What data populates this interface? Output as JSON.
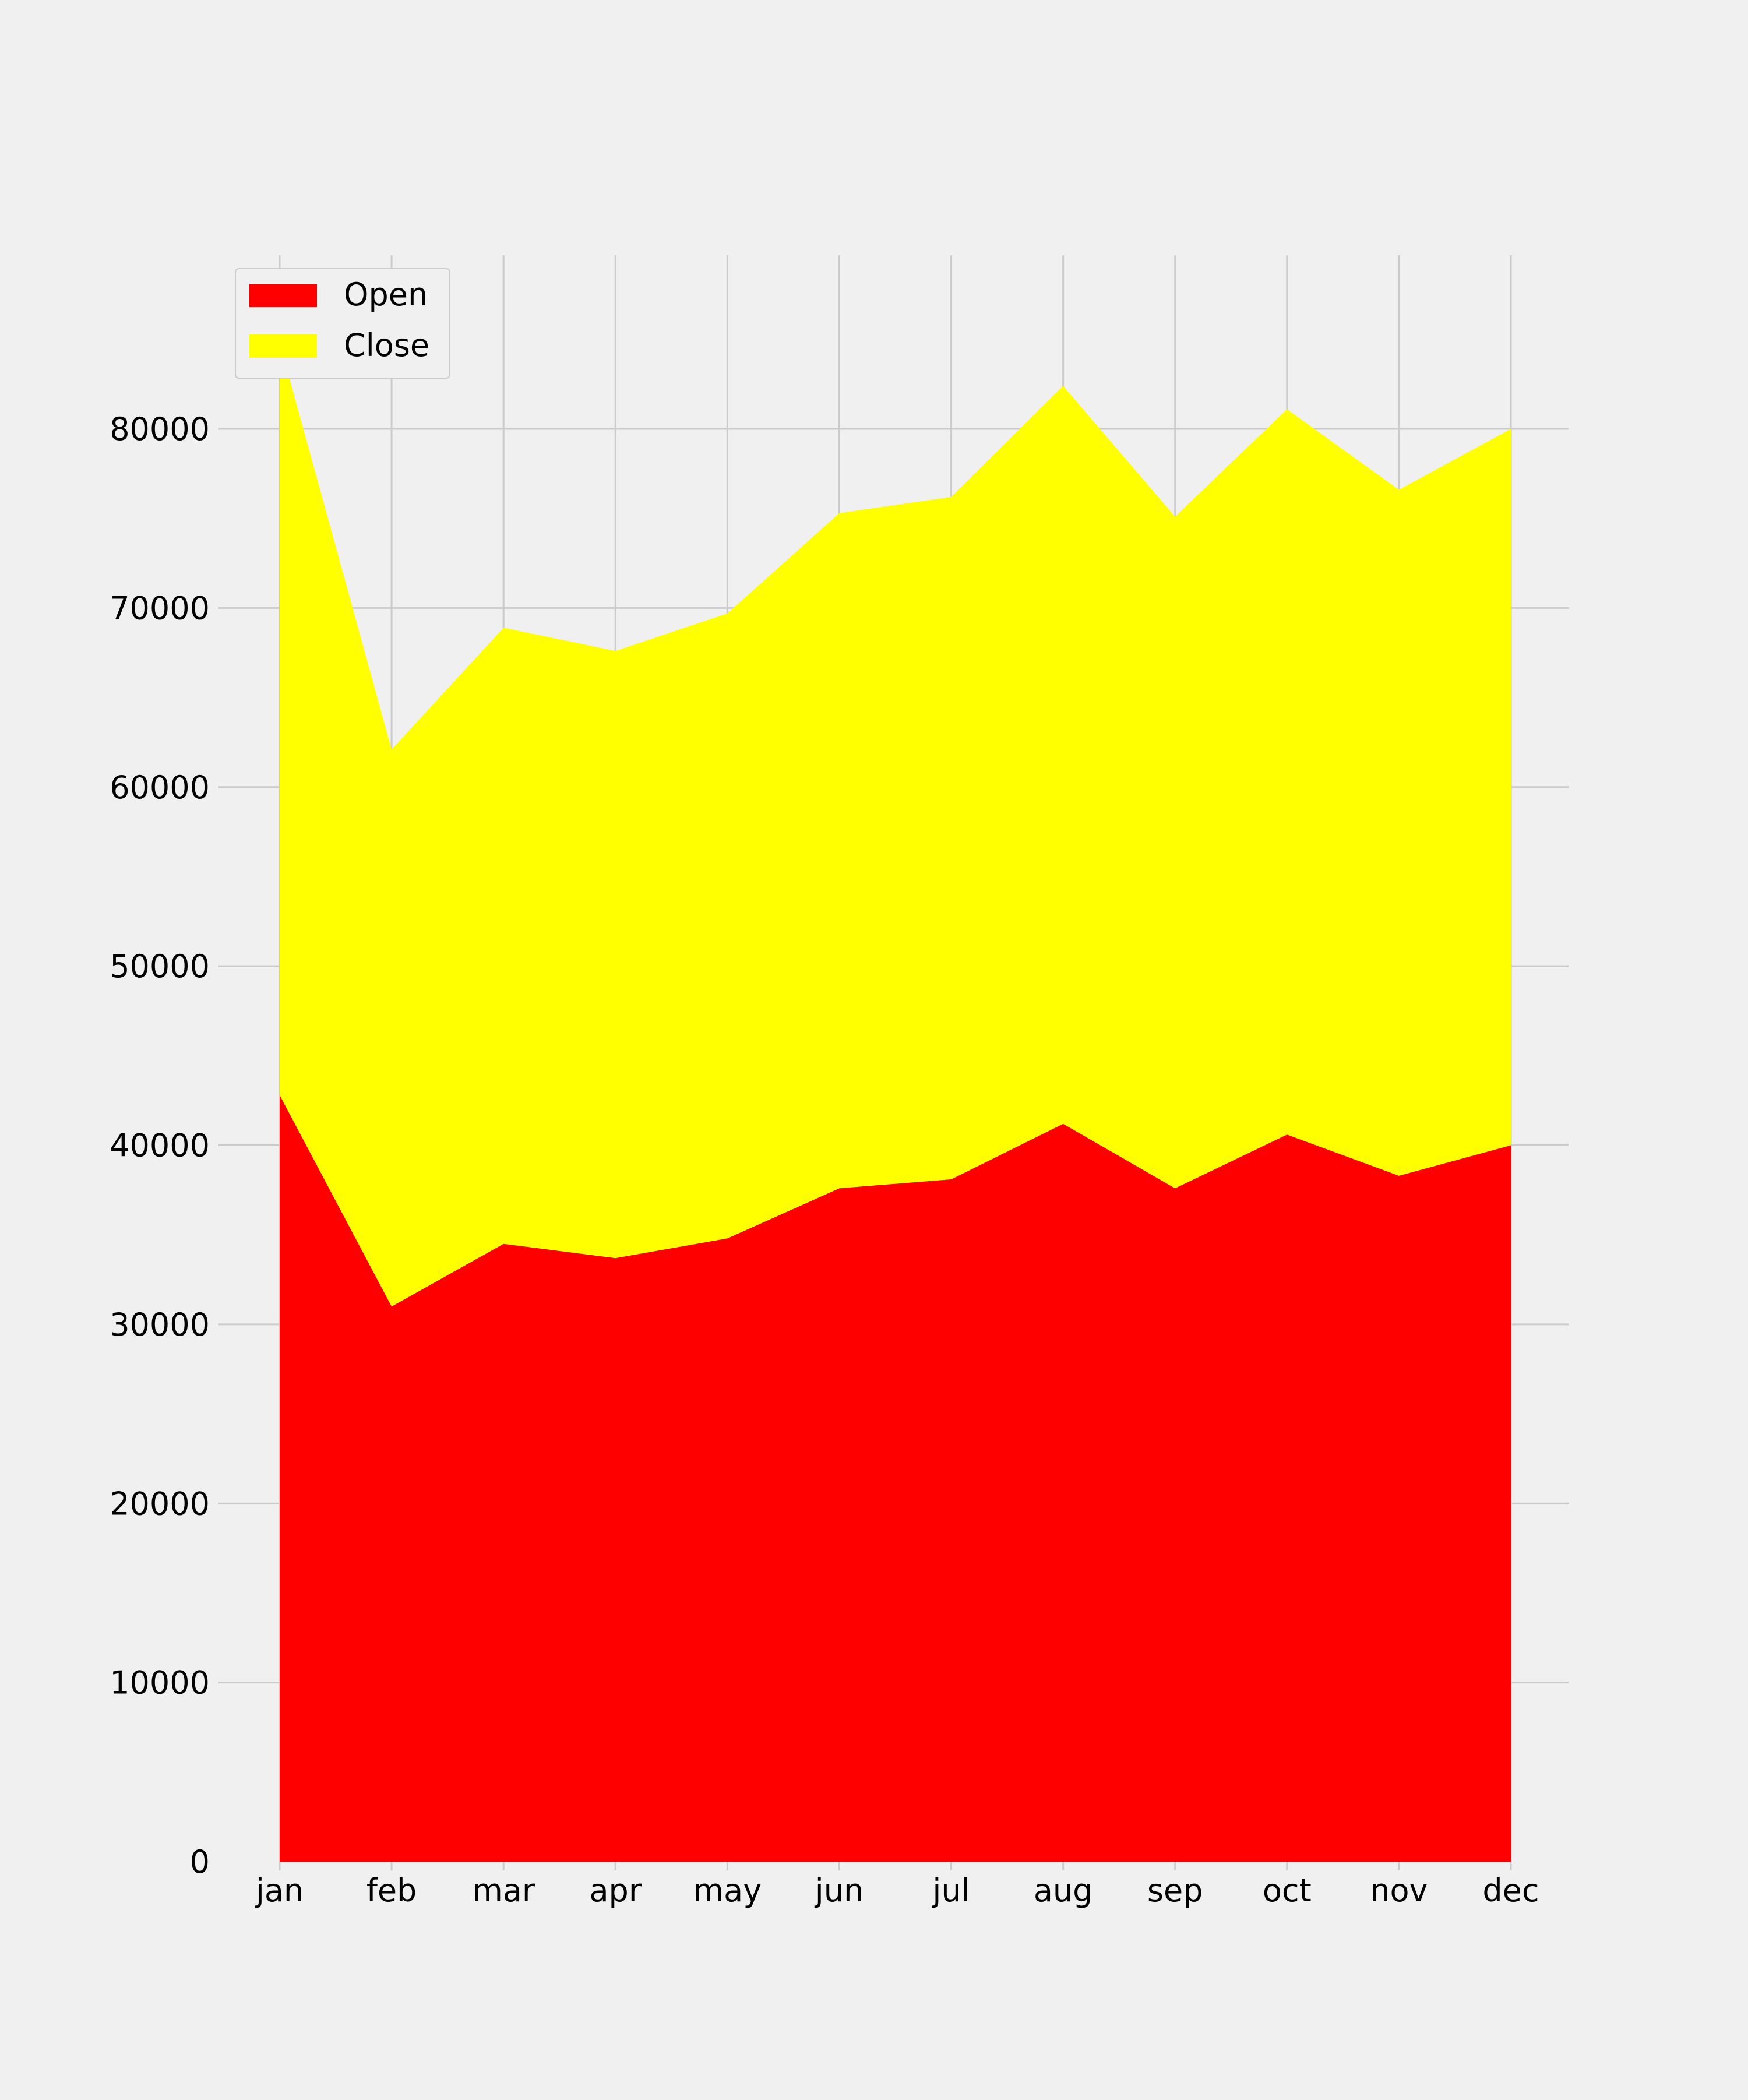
{
  "chart_data": {
    "type": "area",
    "stacked": true,
    "categories": [
      "jan",
      "feb",
      "mar",
      "apr",
      "may",
      "jun",
      "jul",
      "aug",
      "sep",
      "oct",
      "nov",
      "dec"
    ],
    "series": [
      {
        "name": "Open",
        "color": "#ff0000",
        "values": [
          42800,
          31000,
          34500,
          33700,
          34800,
          37600,
          38100,
          41200,
          37600,
          40600,
          38300,
          40000
        ]
      },
      {
        "name": "Close",
        "color": "#ffff00",
        "values": [
          42000,
          31100,
          34400,
          33900,
          34900,
          37700,
          38100,
          41200,
          37500,
          40500,
          38300,
          40000
        ]
      }
    ],
    "title": "",
    "xlabel": "",
    "ylabel": "",
    "ylim": [
      0,
      89500
    ],
    "yticks": [
      0,
      10000,
      20000,
      30000,
      40000,
      50000,
      60000,
      70000,
      80000
    ],
    "grid": true,
    "legend_position": "top-left",
    "background": "#f0f0f0",
    "grid_color": "#cbcbcb"
  }
}
